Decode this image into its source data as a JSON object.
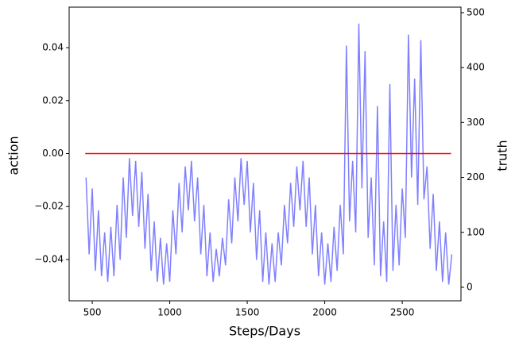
{
  "chart_data": {
    "type": "line",
    "xlabel": "Steps/Days",
    "ylabel": "action",
    "y2label": "truth",
    "ylabel_color": "#ff0000",
    "y2label_color": "#0000cc",
    "xlim": [
      351,
      2879
    ],
    "xticks": [
      500,
      1000,
      1500,
      2000,
      2500
    ],
    "ylim": [
      -0.0556,
      0.0553
    ],
    "yticks": [
      {
        "value": -0.04,
        "label": "−0.04"
      },
      {
        "value": -0.02,
        "label": "−0.02"
      },
      {
        "value": 0,
        "label": "0.00"
      },
      0.02,
      0.04
    ],
    "y2lim": [
      -24.6,
      510
    ],
    "y2ticks": [
      0,
      100,
      200,
      300,
      400,
      500
    ],
    "series": [
      {
        "name": "truth",
        "axis": "y2",
        "color": "#8080ff",
        "x": [
          460,
          480,
          500,
          520,
          540,
          560,
          580,
          600,
          620,
          640,
          660,
          680,
          700,
          720,
          740,
          760,
          780,
          800,
          820,
          840,
          860,
          880,
          900,
          920,
          940,
          960,
          980,
          1000,
          1020,
          1040,
          1060,
          1080,
          1100,
          1120,
          1140,
          1160,
          1180,
          1200,
          1220,
          1240,
          1260,
          1280,
          1300,
          1320,
          1340,
          1360,
          1380,
          1400,
          1420,
          1440,
          1460,
          1480,
          1500,
          1520,
          1540,
          1560,
          1580,
          1600,
          1620,
          1640,
          1660,
          1680,
          1700,
          1720,
          1740,
          1760,
          1780,
          1800,
          1820,
          1840,
          1860,
          1880,
          1900,
          1920,
          1940,
          1960,
          1980,
          2000,
          2020,
          2040,
          2060,
          2080,
          2100,
          2120,
          2140,
          2160,
          2180,
          2200,
          2220,
          2240,
          2260,
          2280,
          2300,
          2320,
          2340,
          2360,
          2380,
          2400,
          2420,
          2440,
          2460,
          2480,
          2500,
          2520,
          2540,
          2560,
          2580,
          2600,
          2620,
          2640,
          2660,
          2680,
          2700,
          2720,
          2740,
          2760,
          2780,
          2800,
          2820
        ],
        "values": [
          200,
          60,
          180,
          30,
          140,
          20,
          100,
          10,
          110,
          20,
          150,
          50,
          200,
          90,
          235,
          130,
          230,
          110,
          210,
          70,
          170,
          30,
          120,
          10,
          90,
          5,
          80,
          10,
          140,
          60,
          190,
          100,
          220,
          140,
          230,
          120,
          200,
          60,
          150,
          20,
          100,
          10,
          70,
          20,
          90,
          40,
          160,
          80,
          200,
          120,
          235,
          150,
          230,
          100,
          190,
          50,
          140,
          10,
          100,
          5,
          80,
          10,
          100,
          40,
          150,
          80,
          190,
          110,
          220,
          140,
          230,
          110,
          200,
          60,
          150,
          20,
          100,
          5,
          80,
          10,
          110,
          30,
          150,
          60,
          440,
          120,
          230,
          100,
          480,
          180,
          430,
          90,
          200,
          40,
          330,
          20,
          120,
          10,
          370,
          30,
          150,
          40,
          180,
          90,
          460,
          200,
          380,
          150,
          450,
          160,
          220,
          70,
          170,
          30,
          120,
          10,
          100,
          5,
          60
        ]
      },
      {
        "name": "action",
        "axis": "y",
        "color": "#ff0000",
        "x": [
          455,
          2815
        ],
        "values": [
          0,
          0
        ]
      }
    ]
  }
}
